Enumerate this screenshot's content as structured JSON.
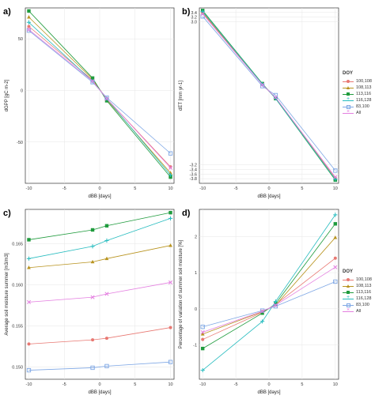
{
  "legend": {
    "title": "DOY",
    "entries": [
      "100,108",
      "108,113",
      "113,116",
      "116,128",
      "83,100",
      "All"
    ]
  },
  "series_style": [
    {
      "color": "#e87872",
      "marker": "circle"
    },
    {
      "color": "#b8931e",
      "marker": "triangle"
    },
    {
      "color": "#1f9b3d",
      "marker": "square"
    },
    {
      "color": "#27bcbf",
      "marker": "plus"
    },
    {
      "color": "#7ea7e5",
      "marker": "square-open"
    },
    {
      "color": "#e47fe0",
      "marker": "x"
    }
  ],
  "chart_data": [
    {
      "panel": "a)",
      "type": "line",
      "xlabel": "dBB [days]",
      "ylabel": "dGPP [gC m-2]",
      "x": [
        -10,
        -1,
        1,
        10
      ],
      "xlim": [
        -10.5,
        10.5
      ],
      "ylim": [
        -90,
        80
      ],
      "xticks": [
        -10,
        -5,
        0,
        5,
        10
      ],
      "xtick_labels": [
        "-10",
        "-5",
        "0",
        "5",
        "10"
      ],
      "yticks": [
        50,
        0,
        -50
      ],
      "ytick_labels": [
        "50",
        "0",
        "-50"
      ],
      "series": [
        {
          "name": "100,108",
          "values": [
            62,
            10,
            -8,
            -74
          ]
        },
        {
          "name": "108,113",
          "values": [
            71,
            11,
            -9,
            -80
          ]
        },
        {
          "name": "113,116",
          "values": [
            77,
            12,
            -10,
            -84
          ]
        },
        {
          "name": "116,128",
          "values": [
            66,
            9,
            -8,
            -82
          ]
        },
        {
          "name": "83,100",
          "values": [
            58,
            8,
            -7,
            -61
          ]
        },
        {
          "name": "All",
          "values": [
            59,
            9,
            -8,
            -75
          ]
        }
      ]
    },
    {
      "panel": "b)",
      "type": "line",
      "xlabel": "dBB [days]",
      "ylabel": "dET [mm yr-1]",
      "x": [
        -10,
        -1,
        1,
        10
      ],
      "xlim": [
        -10.5,
        10.5
      ],
      "ylim": [
        -4.0,
        3.6
      ],
      "xticks": [
        -10,
        -5,
        0,
        5,
        10
      ],
      "xtick_labels": [
        "-10",
        "-5",
        "0",
        "5",
        "10"
      ],
      "yticks": [
        3.4,
        3.2,
        3.0,
        -3.2,
        -3.4,
        -3.6,
        -3.8
      ],
      "ytick_labels": [
        "3.4",
        "3.2",
        "3.0",
        "-3.2",
        "-3.4",
        "-3.6",
        "-3.8"
      ],
      "series": [
        {
          "name": "100,108",
          "values": [
            3.38,
            0.29,
            -0.3,
            -3.77
          ]
        },
        {
          "name": "108,113",
          "values": [
            3.42,
            0.31,
            -0.32,
            -3.82
          ]
        },
        {
          "name": "113,116",
          "values": [
            3.49,
            0.32,
            -0.33,
            -3.86
          ]
        },
        {
          "name": "116,128",
          "values": [
            3.45,
            0.3,
            -0.32,
            -3.83
          ]
        },
        {
          "name": "83,100",
          "values": [
            3.23,
            0.21,
            -0.18,
            -3.45
          ]
        },
        {
          "name": "All",
          "values": [
            3.34,
            0.27,
            -0.28,
            -3.73
          ]
        }
      ]
    },
    {
      "panel": "c)",
      "type": "line",
      "xlabel": "dBB [days]",
      "ylabel": "Average soil moisture summer [m3/m3]",
      "x": [
        -10,
        -1,
        1,
        10
      ],
      "xlim": [
        -10.5,
        10.5
      ],
      "ylim": [
        0.1485,
        0.1692
      ],
      "xticks": [
        -10,
        -5,
        0,
        5,
        10
      ],
      "xtick_labels": [
        "-10",
        "-5",
        "0",
        "5",
        "10"
      ],
      "yticks": [
        0.165,
        0.16,
        0.155,
        0.15
      ],
      "ytick_labels": [
        "0.165",
        "0.160",
        "0.155",
        "0.150"
      ],
      "series": [
        {
          "name": "100,108",
          "values": [
            0.1528,
            0.1533,
            0.1535,
            0.1548
          ]
        },
        {
          "name": "108,113",
          "values": [
            0.1621,
            0.1628,
            0.1632,
            0.1648
          ]
        },
        {
          "name": "113,116",
          "values": [
            0.1655,
            0.1667,
            0.1672,
            0.1688
          ]
        },
        {
          "name": "116,128",
          "values": [
            0.1632,
            0.1647,
            0.1654,
            0.1681
          ]
        },
        {
          "name": "83,100",
          "values": [
            0.1496,
            0.1499,
            0.1501,
            0.1506
          ]
        },
        {
          "name": "All",
          "values": [
            0.1579,
            0.1585,
            0.1589,
            0.1603
          ]
        }
      ]
    },
    {
      "panel": "d)",
      "type": "line",
      "xlabel": "dBB [days]",
      "ylabel": "Percentage of variation of summer soil moisture [%]",
      "x": [
        -10,
        -1,
        1,
        10
      ],
      "xlim": [
        -10.5,
        10.5
      ],
      "ylim": [
        -1.95,
        2.75
      ],
      "xticks": [
        -10,
        -5,
        0,
        5,
        10
      ],
      "xtick_labels": [
        "-10",
        "-5",
        "0",
        "5",
        "10"
      ],
      "yticks": [
        2,
        1,
        0,
        -1
      ],
      "ytick_labels": [
        "2",
        "1",
        "0",
        "-1"
      ],
      "series": [
        {
          "name": "100,108",
          "values": [
            -0.85,
            -0.1,
            0.12,
            1.4
          ]
        },
        {
          "name": "108,113",
          "values": [
            -0.7,
            -0.08,
            0.1,
            1.97
          ]
        },
        {
          "name": "113,116",
          "values": [
            -1.1,
            -0.12,
            0.14,
            2.35
          ]
        },
        {
          "name": "116,128",
          "values": [
            -1.7,
            -0.35,
            0.2,
            2.6
          ]
        },
        {
          "name": "83,100",
          "values": [
            -0.5,
            -0.05,
            0.07,
            0.75
          ]
        },
        {
          "name": "All",
          "values": [
            -0.65,
            -0.07,
            0.1,
            1.15
          ]
        }
      ]
    }
  ]
}
